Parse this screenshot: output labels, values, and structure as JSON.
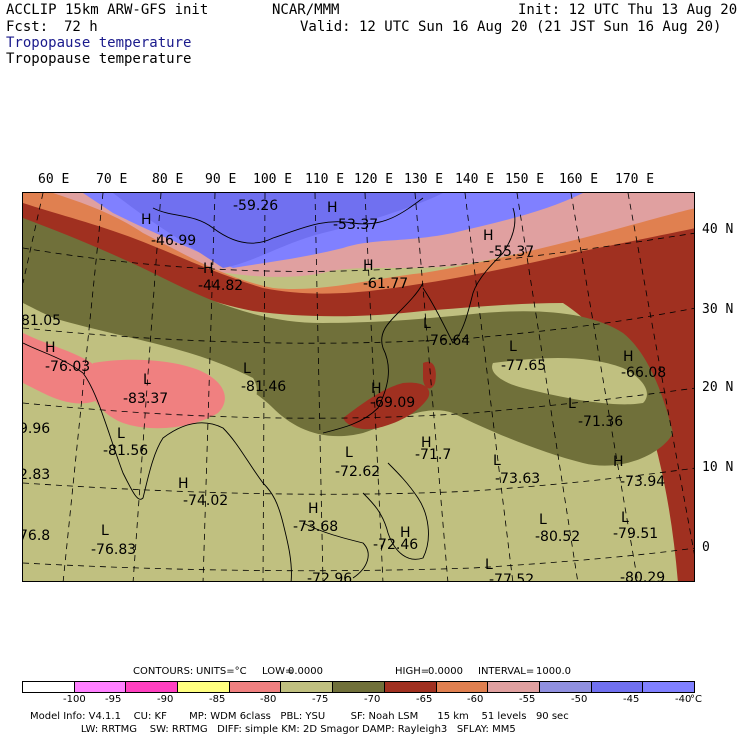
{
  "header": {
    "model_line": "ACCLIP 15km ARW-GFS init",
    "org": "NCAR/MMM",
    "init": "Init: 12 UTC Thu 13 Aug 20",
    "fcst_label": "Fcst:",
    "fcst_value": "72 h",
    "valid": "Valid: 12 UTC Sun 16 Aug 20 (21 JST Sun 16 Aug 20)",
    "field_title_1": "Tropopause temperature",
    "field_title_2": "Tropopause temperature"
  },
  "colors": {
    "le_minus100": "#ffffff",
    "m100_m95": "#ff80ff",
    "m95_m90": "#ff40c0",
    "m90_m85": "#ffff80",
    "m85_m80": "#f08080",
    "m80_m75": "#c0c080",
    "m75_m70": "#70703a",
    "m70_m65": "#a03020",
    "m65_m60": "#e08050",
    "m60_m55": "#e0a0a0",
    "m55_m50": "#9090e0",
    "m50_m45": "#7070f0",
    "ge_m40": "#8080ff"
  },
  "map": {
    "lon_labels": [
      "60 E",
      "70 E",
      "80 E",
      "90 E",
      "100 E",
      "110 E",
      "120 E",
      "130 E",
      "140 E",
      "150 E",
      "160 E",
      "170 E"
    ],
    "lat_labels": [
      "40 N",
      "30 N",
      "20 N",
      "10 N",
      "0"
    ],
    "highs": [
      {
        "mark": "H",
        "value": "-46.99"
      },
      {
        "mark": "H",
        "value": "-59.26"
      },
      {
        "mark": "H",
        "value": "-53.37"
      },
      {
        "mark": "H",
        "value": "-55.37"
      },
      {
        "mark": "H",
        "value": "-44.82"
      },
      {
        "mark": "H",
        "value": "-61.77"
      },
      {
        "mark": "H",
        "value": "-76.03"
      },
      {
        "mark": "H",
        "value": "-69.09"
      },
      {
        "mark": "H",
        "value": "-71.7"
      },
      {
        "mark": "H",
        "value": "-66.08"
      },
      {
        "mark": "H",
        "value": "-73.94"
      },
      {
        "mark": "H",
        "value": "-74.02"
      },
      {
        "mark": "H",
        "value": "-73.68"
      },
      {
        "mark": "H",
        "value": "-72.46"
      }
    ],
    "lows": [
      {
        "mark": "L",
        "value": "-83.37"
      },
      {
        "mark": "L",
        "value": "-81.46"
      },
      {
        "mark": "L",
        "value": "-81.56"
      },
      {
        "mark": "L",
        "value": "-77.65"
      },
      {
        "mark": "L",
        "value": "-71.36"
      },
      {
        "mark": "L",
        "value": "-72.62"
      },
      {
        "mark": "L",
        "value": "-73.63"
      },
      {
        "mark": "L",
        "value": "-76.83"
      },
      {
        "mark": "L",
        "value": "-80.52"
      },
      {
        "mark": "L",
        "value": "-79.51"
      },
      {
        "mark": "L",
        "value": "-80.29"
      },
      {
        "mark": "L",
        "value": "-72.96"
      },
      {
        "mark": "L",
        "value": "-77.52"
      },
      {
        "mark": "L",
        "value": "-76.64"
      }
    ],
    "edge_values": [
      "81.05",
      "9.96",
      "2.83",
      "76.8"
    ]
  },
  "contours": {
    "label": "CONTOURS:",
    "units": "UNITS=°C",
    "low_label": "LOW=",
    "low": "0.0000",
    "high_label": "HIGH=",
    "high": "0.0000",
    "interval_label": "INTERVAL=",
    "interval": "1000.0"
  },
  "colorbar": {
    "ticks": [
      "-100",
      "-95",
      "-90",
      "-85",
      "-80",
      "-75",
      "-70",
      "-65",
      "-60",
      "-55",
      "-50",
      "-45",
      "-40"
    ],
    "unit": "°C"
  },
  "footer": {
    "line1": "Model Info: V4.1.1    CU: KF       MP: WDM 6class   PBL: YSU        SF: Noah LSM      15 km    51 levels   90 sec",
    "line2": "                LW: RRTMG    SW: RRTMG   DIFF: simple KM: 2D Smagor DAMP: Rayleigh3   SFLAY: MM5"
  }
}
